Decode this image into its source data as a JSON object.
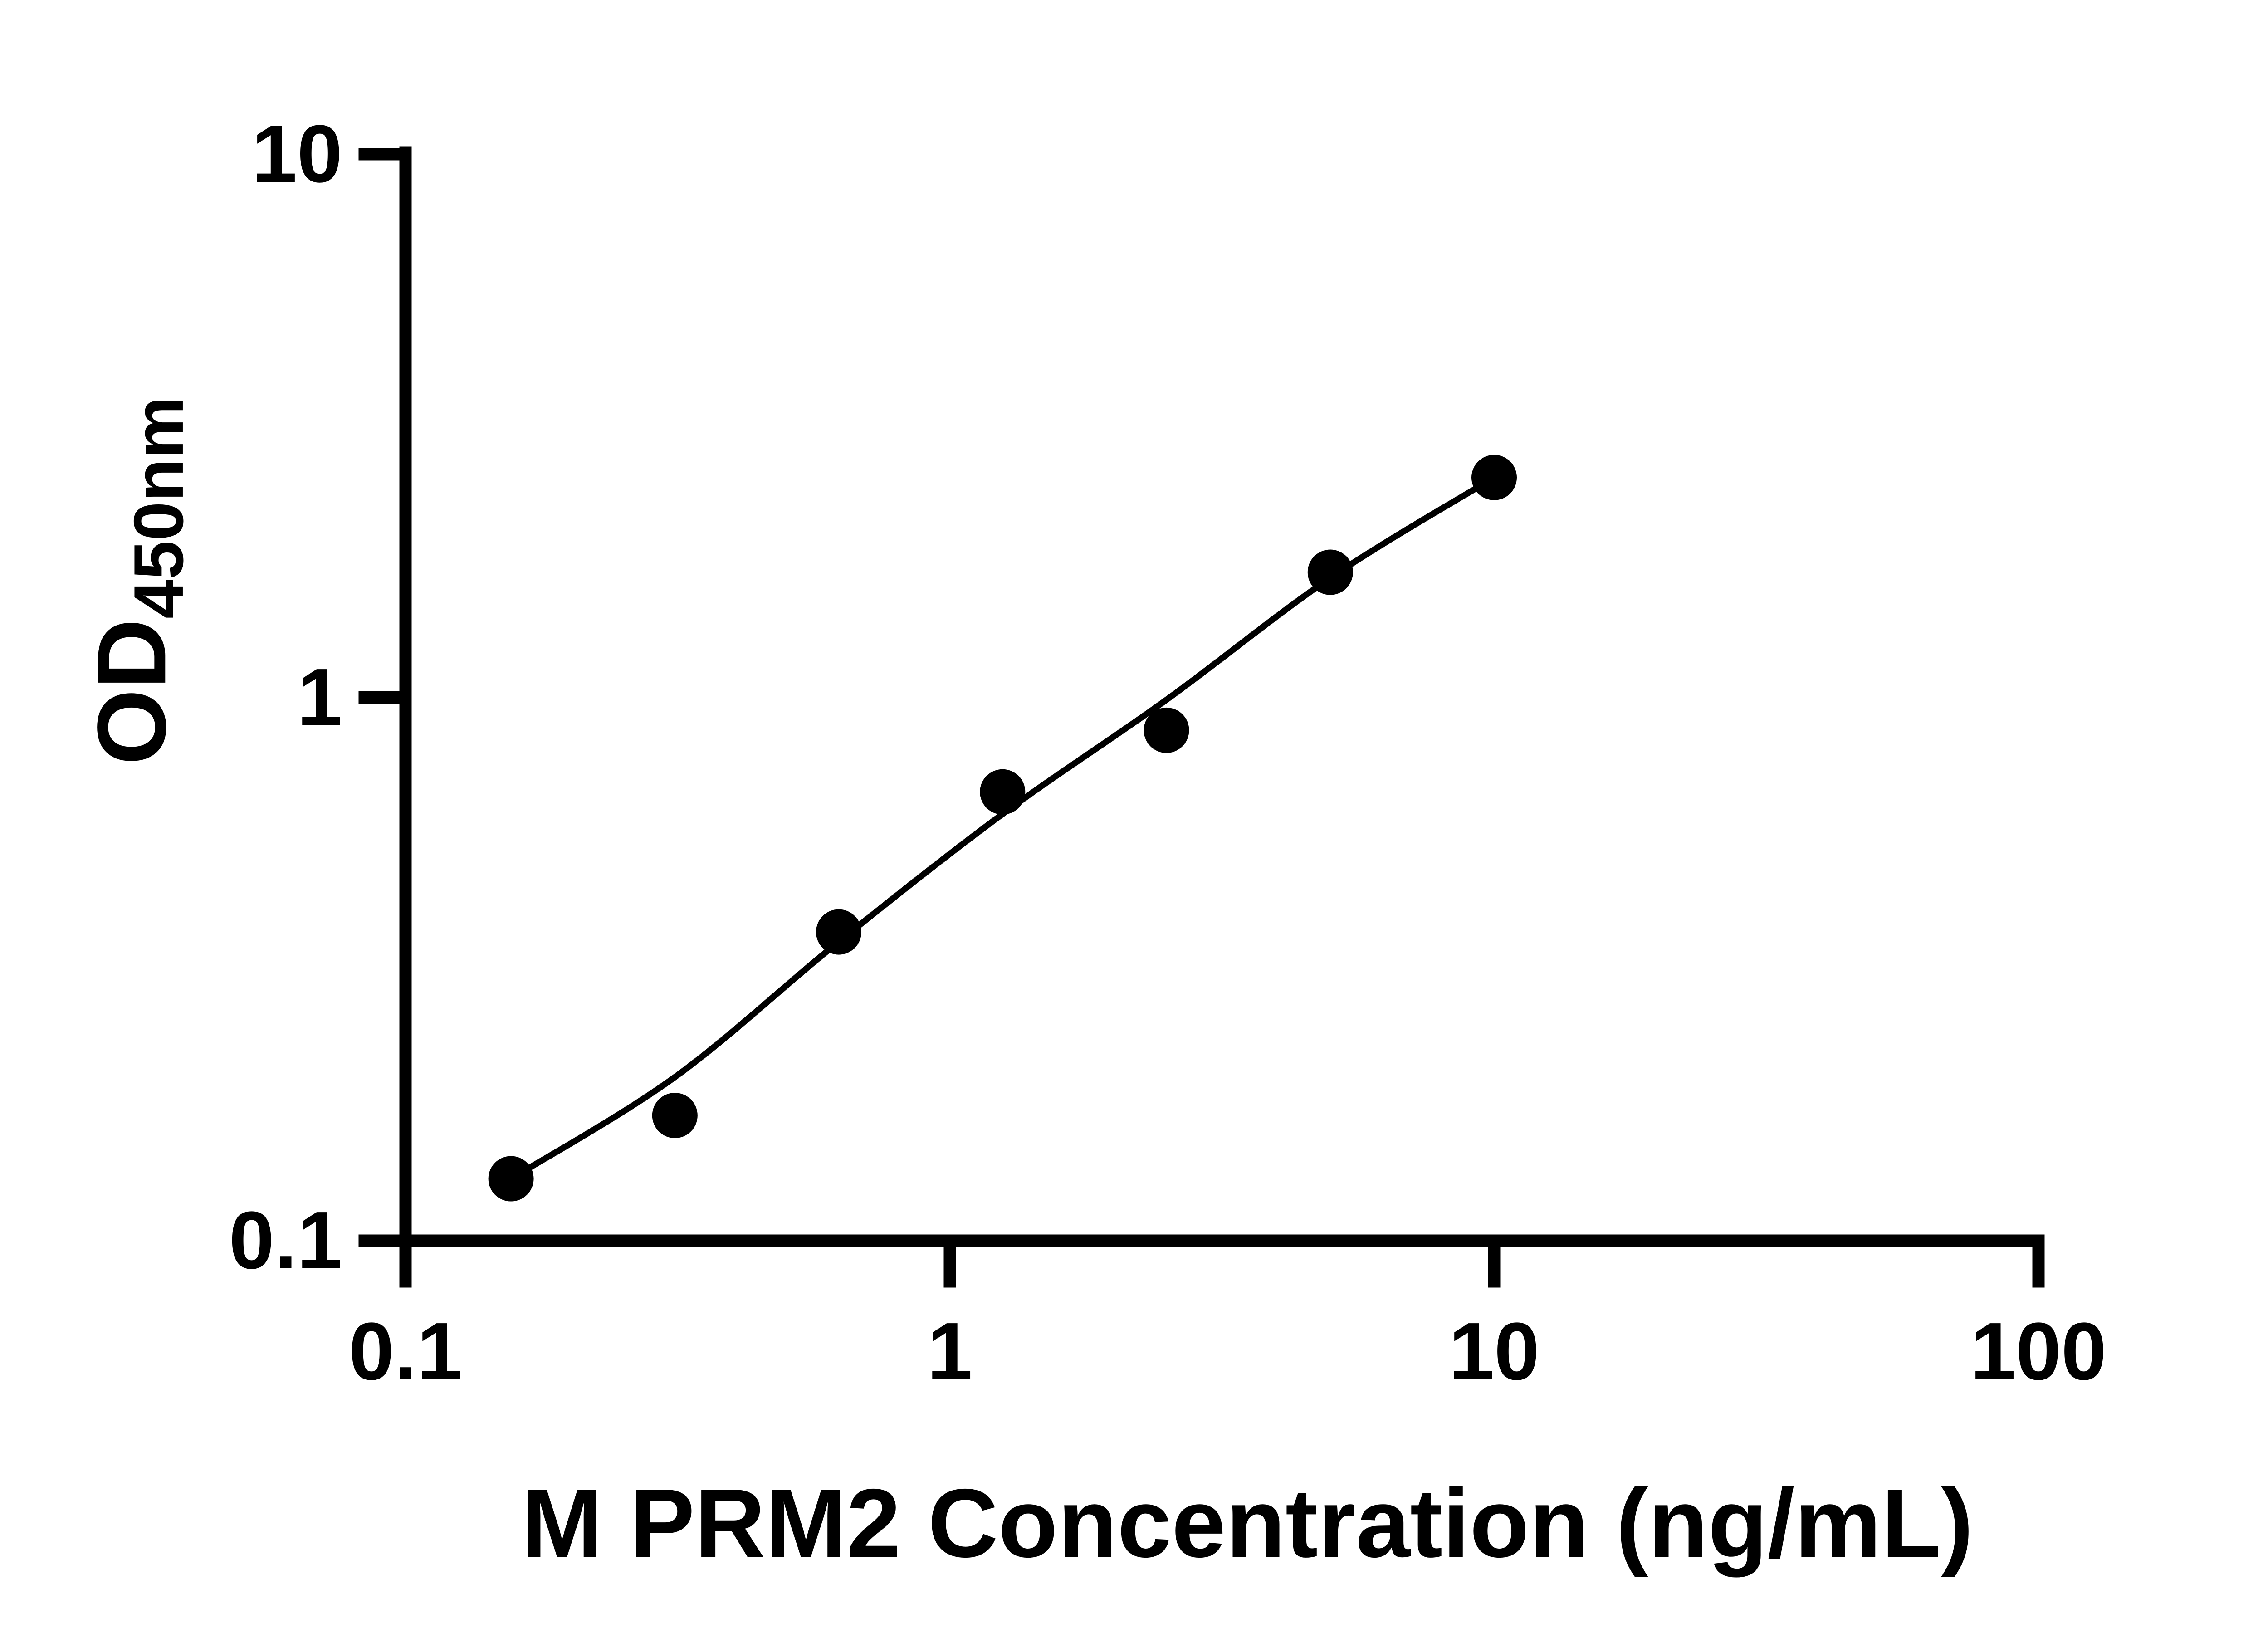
{
  "figure": {
    "background_color": "#ffffff",
    "ink_color": "#000000"
  },
  "chart_data": {
    "type": "scatter",
    "title": "",
    "xlabel": "M PRM2 Concentration (ng/mL)",
    "ylabel": "OD",
    "ylabel_subscript": "450nm",
    "x_axis": {
      "scale": "log",
      "min": 0.1,
      "max": 100,
      "tick_labels": [
        "0.1",
        "1",
        "10",
        "100"
      ],
      "tick_values": [
        0.1,
        1,
        10,
        100
      ]
    },
    "y_axis": {
      "scale": "log",
      "min": 0.1,
      "max": 10,
      "tick_labels": [
        "0.1",
        "1",
        "10"
      ],
      "tick_values": [
        0.1,
        1,
        10
      ]
    },
    "grid": false,
    "legend_position": "none",
    "series": [
      {
        "name": "standard-points",
        "kind": "scatter",
        "marker": "filled-circle",
        "color": "#000000",
        "points": [
          {
            "x": 0.15625,
            "y": 0.13
          },
          {
            "x": 0.3125,
            "y": 0.17
          },
          {
            "x": 0.625,
            "y": 0.37
          },
          {
            "x": 1.25,
            "y": 0.67
          },
          {
            "x": 2.5,
            "y": 0.87
          },
          {
            "x": 5,
            "y": 1.7
          },
          {
            "x": 10,
            "y": 2.54
          }
        ]
      },
      {
        "name": "fit-curve",
        "kind": "line",
        "color": "#000000",
        "points": [
          {
            "x": 0.15625,
            "y": 0.13
          },
          {
            "x": 0.3125,
            "y": 0.2
          },
          {
            "x": 0.625,
            "y": 0.355
          },
          {
            "x": 1.25,
            "y": 0.61
          },
          {
            "x": 2.5,
            "y": 0.99
          },
          {
            "x": 5,
            "y": 1.66
          },
          {
            "x": 10,
            "y": 2.54
          }
        ]
      }
    ]
  }
}
